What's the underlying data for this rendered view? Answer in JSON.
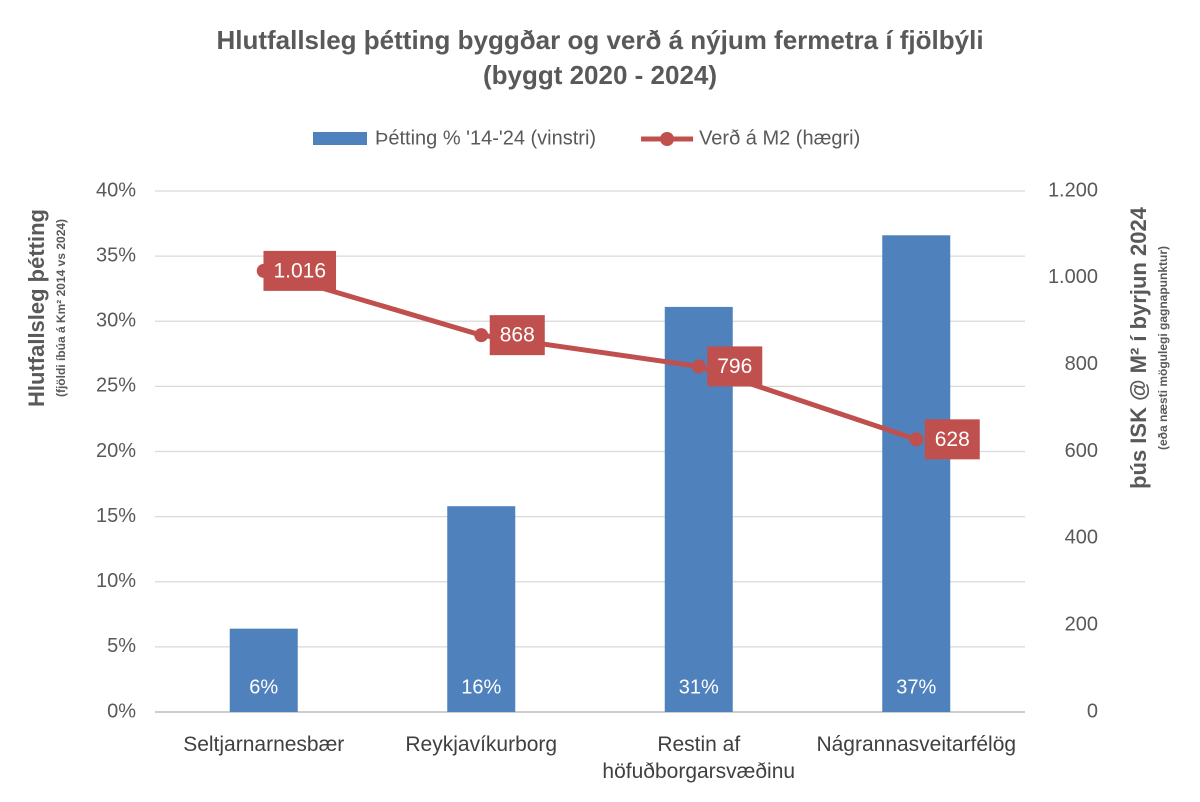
{
  "chart_data": {
    "type": "bar-line",
    "title": "Hlutfallsleg þétting byggðar og verð á nýjum fermetra í fjölbýli",
    "subtitle": "(byggt 2020 - 2024)",
    "y_label": "Hlutfallsleg þétting",
    "y_sublabel": "(fjöldi íbúa á Km² 2014 vs 2024)",
    "y2_label": "þús ISK @ M² í byrjun 2024",
    "y2_sublabel": "(eða næsti mögulegi gagnapunktur)",
    "categories": [
      "Seltjarnarnesbær",
      "Reykjavíkurborg",
      "Restin af höfuðborgarsvæðinu",
      "Nágrannasveitarfélög"
    ],
    "series": [
      {
        "name": "Þétting % '14-'24 (vinstri)",
        "type": "bar",
        "color": "#4f81bd",
        "values": [
          6.4,
          15.8,
          31.1,
          36.6
        ],
        "value_labels": [
          "6%",
          "16%",
          "31%",
          "37%"
        ]
      },
      {
        "name": "Verð á M2 (hægri)",
        "type": "line",
        "axis": "y2",
        "color": "#c0504d",
        "values": [
          1016,
          868,
          796,
          628
        ],
        "value_labels": [
          "1.016",
          "868",
          "796",
          "628"
        ]
      }
    ],
    "ylim": [
      0,
      40
    ],
    "yticks": [
      {
        "value": 0,
        "label": "0%"
      },
      {
        "value": 5,
        "label": "5%"
      },
      {
        "value": 10,
        "label": "10%"
      },
      {
        "value": 15,
        "label": "15%"
      },
      {
        "value": 20,
        "label": "20%"
      },
      {
        "value": 25,
        "label": "25%"
      },
      {
        "value": 30,
        "label": "30%"
      },
      {
        "value": 35,
        "label": "35%"
      },
      {
        "value": 40,
        "label": "40%"
      }
    ],
    "y2lim": [
      0,
      1200
    ],
    "y2ticks": [
      0,
      200,
      400,
      600,
      800,
      {
        "value": 1000,
        "label": "1.000"
      },
      {
        "value": 1200,
        "label": "1.200"
      }
    ],
    "grid": true,
    "legend": "top"
  }
}
